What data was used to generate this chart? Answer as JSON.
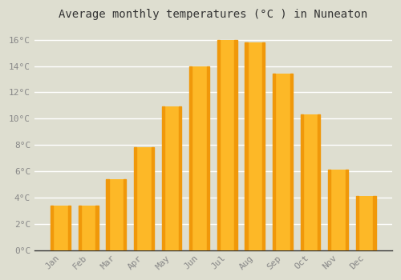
{
  "title": "Average monthly temperatures (°C ) in Nuneaton",
  "months": [
    "Jan",
    "Feb",
    "Mar",
    "Apr",
    "May",
    "Jun",
    "Jul",
    "Aug",
    "Sep",
    "Oct",
    "Nov",
    "Dec"
  ],
  "values": [
    3.4,
    3.4,
    5.4,
    7.8,
    10.9,
    14.0,
    16.0,
    15.8,
    13.4,
    10.3,
    6.1,
    4.1
  ],
  "bar_color_center": "#FDB827",
  "bar_color_edge": "#F0980A",
  "background_color": "#DEDED0",
  "grid_color": "#FFFFFF",
  "ylim": [
    0,
    17.0
  ],
  "yticks": [
    0,
    2,
    4,
    6,
    8,
    10,
    12,
    14,
    16
  ],
  "ytick_labels": [
    "0°C",
    "2°C",
    "4°C",
    "6°C",
    "8°C",
    "10°C",
    "12°C",
    "14°C",
    "16°C"
  ],
  "title_fontsize": 10,
  "tick_fontsize": 8,
  "tick_color": "#888888",
  "title_color": "#333333",
  "bar_width": 0.72,
  "spine_color": "#333333"
}
